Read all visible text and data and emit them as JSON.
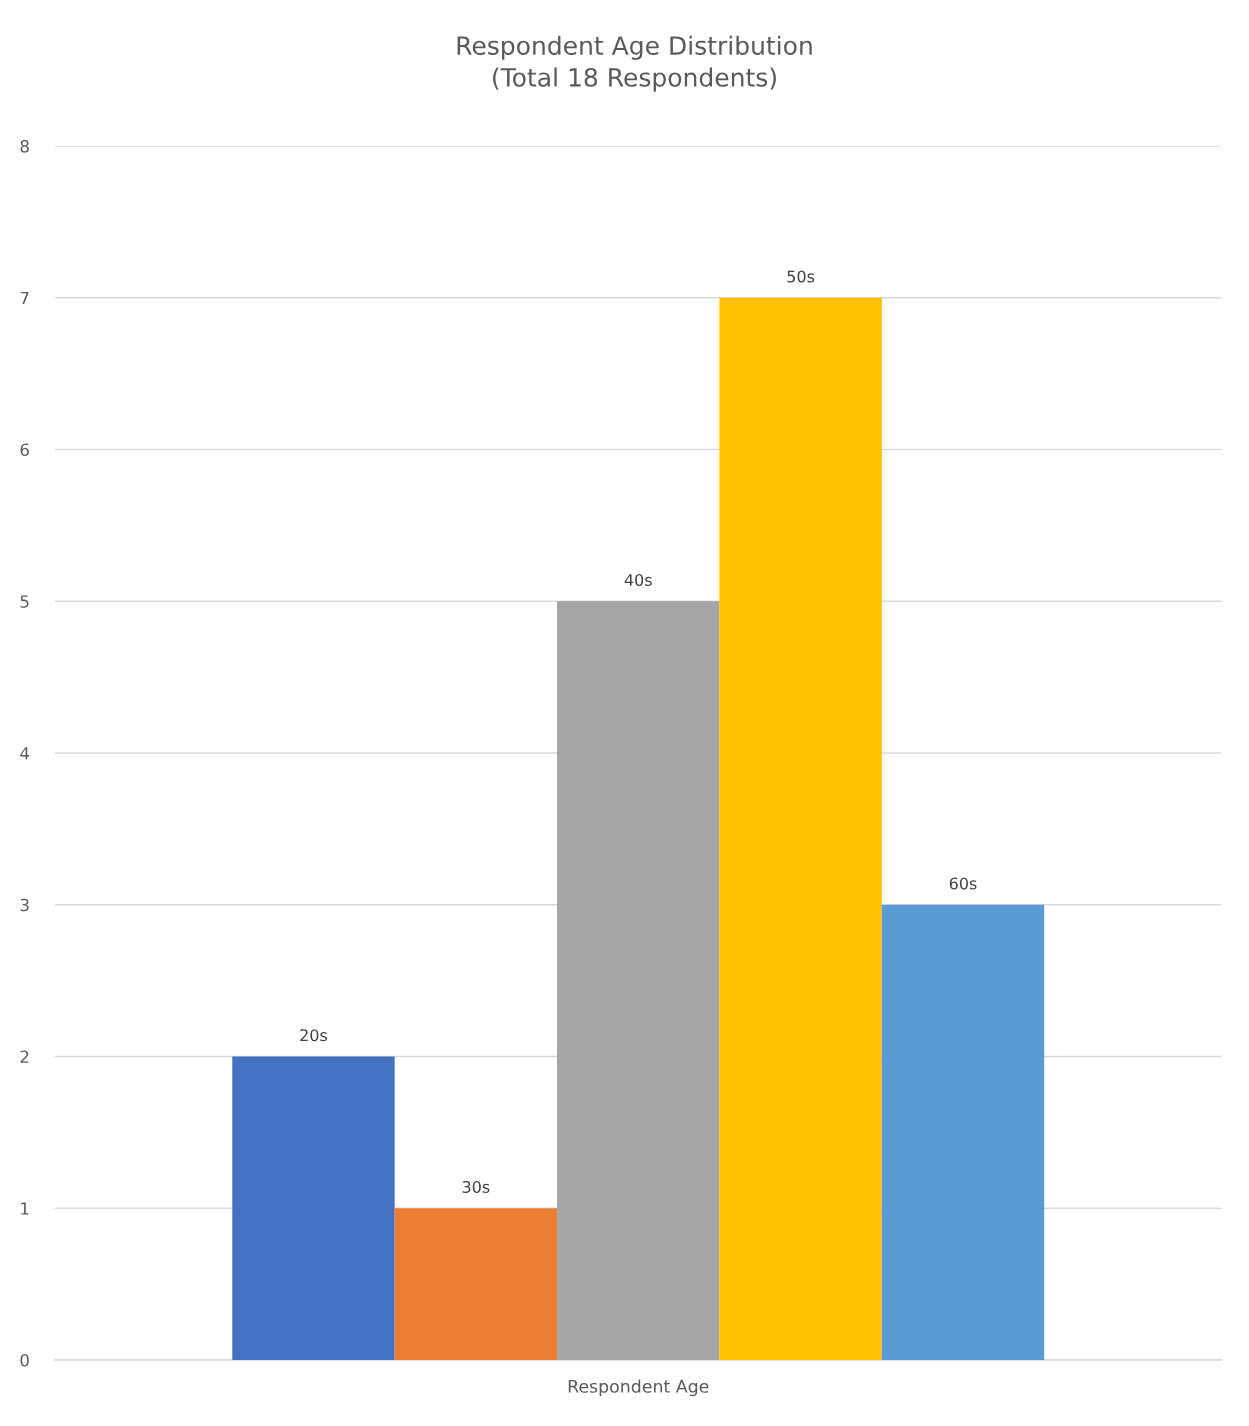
{
  "chart_data": {
    "type": "bar",
    "title": "Respondent Age Distribution\n(Total 18 Respondents)",
    "categories": [
      "Respondent Age"
    ],
    "series": [
      {
        "name": "20s",
        "color": "#4472c4",
        "values": [
          2
        ]
      },
      {
        "name": "30s",
        "color": "#ed7d31",
        "values": [
          1
        ]
      },
      {
        "name": "40s",
        "color": "#a5a5a5",
        "values": [
          5
        ]
      },
      {
        "name": "50s",
        "color": "#ffc000",
        "values": [
          7
        ]
      },
      {
        "name": "60s",
        "color": "#5b9bd5",
        "values": [
          3
        ]
      }
    ],
    "ylim": [
      0,
      8
    ],
    "yticks": [
      0,
      1,
      2,
      3,
      4,
      5,
      6,
      7,
      8
    ],
    "grid": "y",
    "legend": false
  }
}
